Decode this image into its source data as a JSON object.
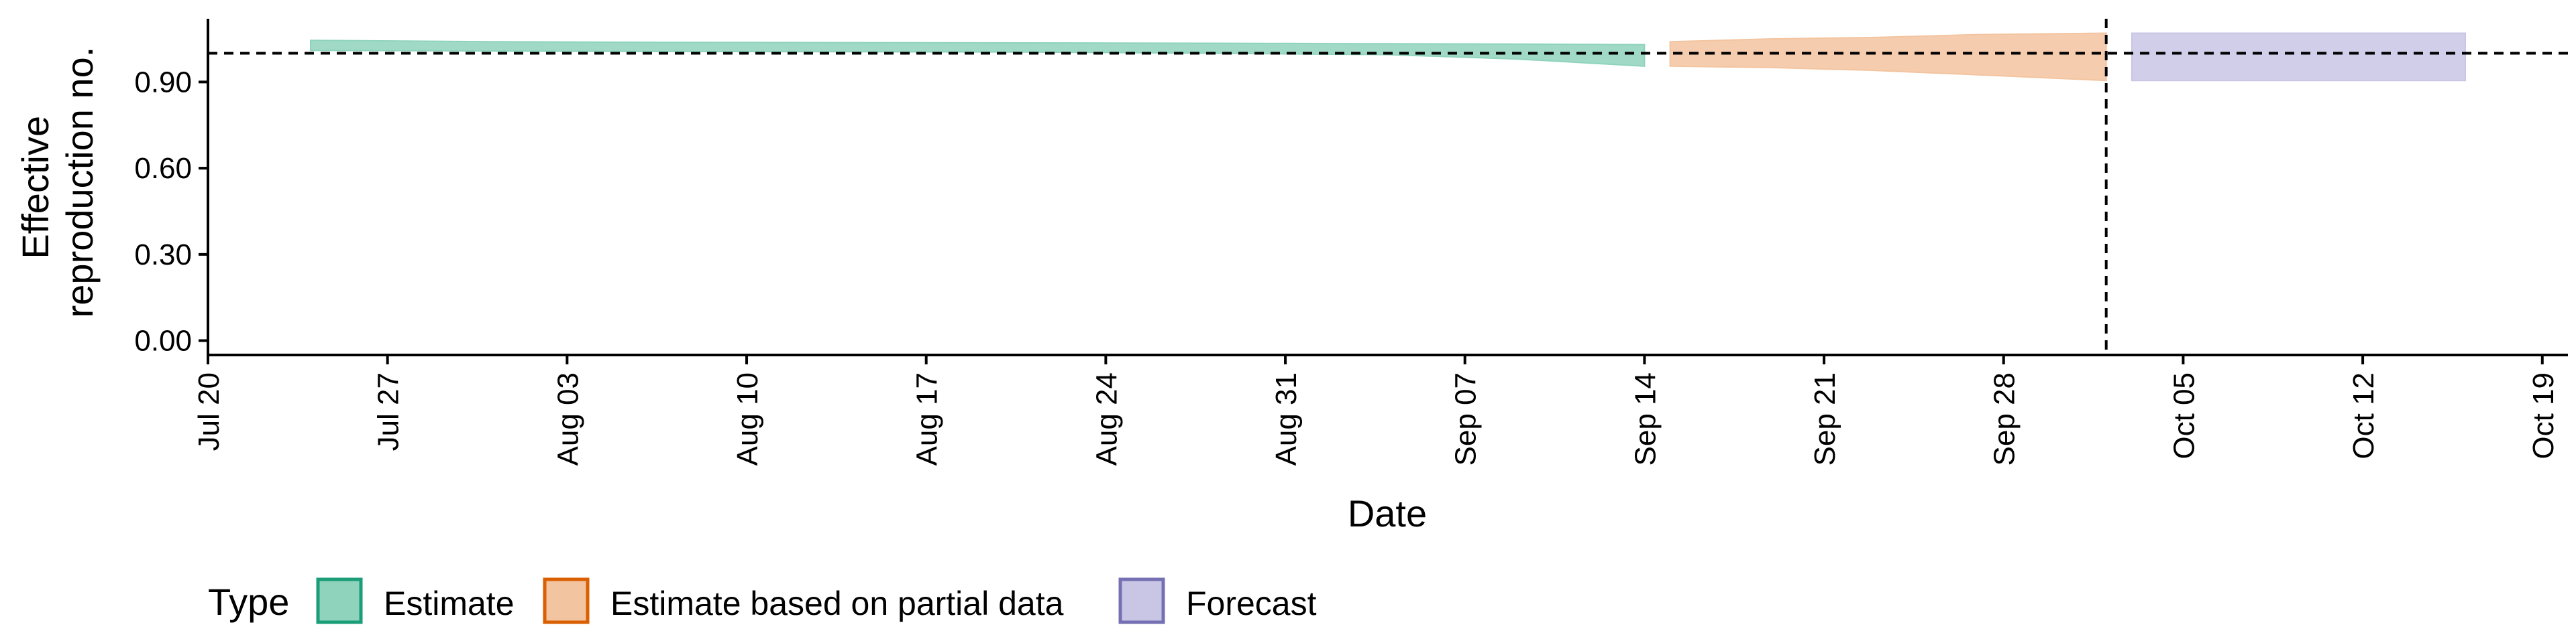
{
  "chart_data": {
    "type": "area",
    "title": "",
    "xlabel": "Date",
    "ylabel_lines": [
      "Effective",
      "reproduction no."
    ],
    "x_ticks": [
      "Jul 20",
      "Jul 27",
      "Aug 03",
      "Aug 10",
      "Aug 17",
      "Aug 24",
      "Aug 31",
      "Sep 07",
      "Sep 14",
      "Sep 21",
      "Sep 28",
      "Oct 05",
      "Oct 12",
      "Oct 19"
    ],
    "x_tick_dates": [
      "2020-07-20",
      "2020-07-27",
      "2020-08-03",
      "2020-08-10",
      "2020-08-17",
      "2020-08-24",
      "2020-08-31",
      "2020-09-07",
      "2020-09-14",
      "2020-09-21",
      "2020-09-28",
      "2020-10-05",
      "2020-10-12",
      "2020-10-19"
    ],
    "y_ticks": [
      "0.00",
      "0.30",
      "0.60",
      "0.90"
    ],
    "y_tick_values": [
      0.0,
      0.3,
      0.6,
      0.9
    ],
    "xlim": [
      "2020-07-20",
      "2020-10-20"
    ],
    "ylim": [
      -0.05,
      1.12
    ],
    "reference_y": 1.0,
    "vline_date": "2020-10-02",
    "grid": false,
    "legend_position": "bottom-left",
    "legend_title": "Type",
    "series": [
      {
        "name": "Estimate",
        "color": "#1b9e77",
        "fill": "#8fd3bd",
        "points": [
          {
            "x": "2020-07-24",
            "lower": 1.01,
            "upper": 1.045
          },
          {
            "x": "2020-07-31",
            "lower": 1.008,
            "upper": 1.04
          },
          {
            "x": "2020-08-07",
            "lower": 1.006,
            "upper": 1.038
          },
          {
            "x": "2020-08-14",
            "lower": 1.005,
            "upper": 1.037
          },
          {
            "x": "2020-08-21",
            "lower": 1.004,
            "upper": 1.036
          },
          {
            "x": "2020-08-28",
            "lower": 1.0,
            "upper": 1.035
          },
          {
            "x": "2020-09-04",
            "lower": 0.995,
            "upper": 1.033
          },
          {
            "x": "2020-09-09",
            "lower": 0.98,
            "upper": 1.032
          },
          {
            "x": "2020-09-14",
            "lower": 0.955,
            "upper": 1.03
          }
        ]
      },
      {
        "name": "Estimate based on partial data",
        "color": "#d95f02",
        "fill": "#f3c4a0",
        "points": [
          {
            "x": "2020-09-15",
            "lower": 0.955,
            "upper": 1.04
          },
          {
            "x": "2020-09-19",
            "lower": 0.95,
            "upper": 1.05
          },
          {
            "x": "2020-09-23",
            "lower": 0.94,
            "upper": 1.055
          },
          {
            "x": "2020-09-27",
            "lower": 0.925,
            "upper": 1.065
          },
          {
            "x": "2020-10-02",
            "lower": 0.905,
            "upper": 1.07
          }
        ]
      },
      {
        "name": "Forecast",
        "color": "#7570b3",
        "fill": "#c9c6e5",
        "points": [
          {
            "x": "2020-10-03",
            "lower": 0.905,
            "upper": 1.07
          },
          {
            "x": "2020-10-16",
            "lower": 0.905,
            "upper": 1.07
          }
        ]
      }
    ]
  }
}
